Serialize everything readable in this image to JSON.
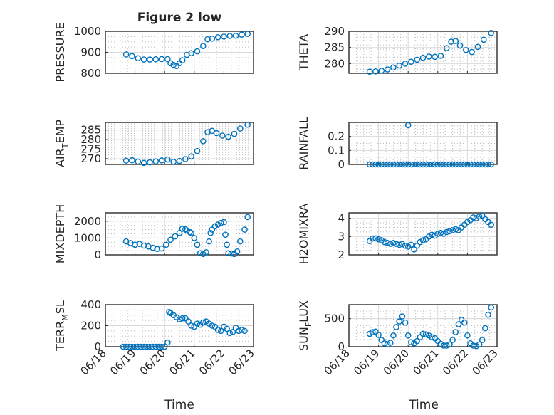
{
  "figure": {
    "title": "Figure 2 low",
    "xlabel": "Time",
    "xticks": [
      "06/18",
      "06/19",
      "06/20",
      "06/21",
      "06/22",
      "06/23"
    ],
    "series_color": "#0072BD"
  },
  "chart_data": [
    {
      "type": "scatter",
      "ylabel": "PRESSURE",
      "title": "Figure 2 low",
      "xlim": [
        0,
        5
      ],
      "ylim": [
        800,
        1000
      ],
      "yticks": [
        800,
        900,
        1000
      ],
      "xticks": [
        "06/18",
        "06/19",
        "06/20",
        "06/21",
        "06/22",
        "06/23"
      ],
      "show_xticklabels": false,
      "grid": true,
      "x": [
        0.7,
        0.9,
        1.1,
        1.3,
        1.5,
        1.7,
        1.9,
        2.1,
        2.2,
        2.3,
        2.4,
        2.5,
        2.6,
        2.75,
        2.9,
        3.1,
        3.3,
        3.45,
        3.6,
        3.8,
        4.0,
        4.2,
        4.4,
        4.6,
        4.8
      ],
      "y": [
        890,
        882,
        872,
        866,
        866,
        867,
        868,
        868,
        848,
        840,
        835,
        848,
        862,
        888,
        896,
        905,
        930,
        962,
        965,
        972,
        975,
        978,
        979,
        984,
        988
      ]
    },
    {
      "type": "scatter",
      "ylabel": "THETA",
      "xlim": [
        0,
        5
      ],
      "ylim": [
        277,
        290
      ],
      "yticks": [
        280,
        285,
        290
      ],
      "xticks": [
        "06/18",
        "06/19",
        "06/20",
        "06/21",
        "06/22",
        "06/23"
      ],
      "show_xticklabels": false,
      "grid": true,
      "x": [
        0.7,
        0.9,
        1.1,
        1.3,
        1.5,
        1.7,
        1.9,
        2.1,
        2.3,
        2.5,
        2.7,
        2.9,
        3.1,
        3.3,
        3.45,
        3.6,
        3.75,
        3.95,
        4.15,
        4.35,
        4.55,
        4.8
      ],
      "y": [
        277.5,
        277.6,
        277.8,
        278.2,
        278.8,
        279.4,
        280.0,
        280.6,
        281.2,
        281.8,
        282.2,
        282.1,
        282.4,
        284.8,
        286.8,
        287.0,
        285.6,
        284.2,
        283.6,
        285.2,
        287.4,
        289.5
      ]
    },
    {
      "type": "scatter",
      "ylabel": "AIR_TEMP",
      "xlim": [
        0,
        5
      ],
      "ylim": [
        267,
        289
      ],
      "yticks": [
        270,
        275,
        280,
        285
      ],
      "xticks": [
        "06/18",
        "06/19",
        "06/20",
        "06/21",
        "06/22",
        "06/23"
      ],
      "show_xticklabels": false,
      "grid": true,
      "x": [
        0.7,
        0.9,
        1.1,
        1.3,
        1.5,
        1.7,
        1.9,
        2.1,
        2.3,
        2.5,
        2.7,
        2.9,
        3.1,
        3.3,
        3.45,
        3.6,
        3.75,
        3.95,
        4.15,
        4.35,
        4.55,
        4.8
      ],
      "y": [
        269.0,
        269.2,
        268.5,
        267.8,
        268.1,
        268.6,
        269.1,
        269.6,
        268.4,
        268.8,
        269.8,
        271.2,
        274.0,
        279.2,
        283.9,
        284.6,
        283.4,
        282.1,
        281.5,
        283.0,
        285.8,
        287.8
      ]
    },
    {
      "type": "scatter",
      "ylabel": "RAINFALL",
      "xlim": [
        0,
        5
      ],
      "ylim": [
        0,
        0.3
      ],
      "yticks": [
        0,
        0.1,
        0.2
      ],
      "xticks": [
        "06/18",
        "06/19",
        "06/20",
        "06/21",
        "06/22",
        "06/23"
      ],
      "show_xticklabels": false,
      "grid": true,
      "x": [
        0.7,
        0.8,
        0.9,
        1.0,
        1.1,
        1.2,
        1.3,
        1.4,
        1.5,
        1.6,
        1.7,
        1.8,
        1.9,
        2.0,
        2.1,
        2.2,
        2.3,
        2.4,
        2.5,
        2.6,
        2.7,
        2.8,
        2.9,
        3.0,
        3.1,
        3.2,
        3.3,
        3.4,
        3.5,
        3.6,
        3.7,
        3.8,
        3.9,
        4.0,
        4.1,
        4.2,
        4.3,
        4.4,
        4.5,
        4.6,
        4.7,
        4.8,
        2.0
      ],
      "y": [
        0,
        0,
        0,
        0,
        0,
        0,
        0,
        0,
        0,
        0,
        0,
        0,
        0,
        0,
        0,
        0,
        0,
        0,
        0,
        0,
        0,
        0,
        0,
        0,
        0,
        0,
        0,
        0,
        0,
        0,
        0,
        0,
        0,
        0,
        0,
        0,
        0,
        0,
        0,
        0,
        0,
        0,
        0.28
      ]
    },
    {
      "type": "scatter",
      "ylabel": "MIXDEPTH",
      "xlim": [
        0,
        5
      ],
      "ylim": [
        0,
        2500
      ],
      "yticks": [
        0,
        1000,
        2000
      ],
      "xticks": [
        "06/18",
        "06/19",
        "06/20",
        "06/21",
        "06/22",
        "06/23"
      ],
      "show_xticklabels": false,
      "grid": true,
      "x": [
        0.7,
        0.85,
        1.0,
        1.15,
        1.3,
        1.45,
        1.6,
        1.75,
        1.9,
        2.05,
        2.2,
        2.35,
        2.5,
        2.6,
        2.7,
        2.75,
        2.85,
        2.9,
        3.0,
        3.1,
        3.2,
        3.3,
        3.4,
        3.5,
        3.55,
        3.6,
        3.7,
        3.8,
        3.9,
        4.0,
        4.05,
        4.1,
        4.15,
        4.25,
        4.35,
        4.45,
        4.55,
        4.7,
        4.8
      ],
      "y": [
        800,
        700,
        600,
        650,
        550,
        500,
        420,
        350,
        380,
        600,
        900,
        1100,
        1300,
        1550,
        1520,
        1450,
        1350,
        1300,
        1000,
        600,
        100,
        50,
        150,
        800,
        1300,
        1500,
        1700,
        1800,
        1900,
        1950,
        1200,
        600,
        100,
        80,
        50,
        200,
        800,
        1500,
        2250
      ]
    },
    {
      "type": "scatter",
      "ylabel": "H2OMIXRA",
      "xlim": [
        0,
        5
      ],
      "ylim": [
        2,
        4.3
      ],
      "yticks": [
        2,
        3,
        4
      ],
      "xticks": [
        "06/18",
        "06/19",
        "06/20",
        "06/21",
        "06/22",
        "06/23"
      ],
      "show_xticklabels": false,
      "grid": true,
      "x": [
        0.7,
        0.8,
        0.9,
        1.0,
        1.1,
        1.2,
        1.3,
        1.4,
        1.5,
        1.6,
        1.7,
        1.8,
        1.9,
        2.0,
        2.1,
        2.2,
        2.3,
        2.4,
        2.5,
        2.6,
        2.7,
        2.8,
        2.9,
        3.0,
        3.1,
        3.2,
        3.3,
        3.4,
        3.5,
        3.6,
        3.7,
        3.8,
        3.9,
        4.0,
        4.1,
        4.2,
        4.3,
        4.4,
        4.5,
        4.6,
        4.7,
        4.8
      ],
      "y": [
        2.75,
        2.9,
        2.9,
        2.85,
        2.8,
        2.7,
        2.65,
        2.6,
        2.65,
        2.6,
        2.55,
        2.6,
        2.5,
        2.45,
        2.55,
        2.3,
        2.5,
        2.7,
        2.8,
        2.85,
        3.0,
        3.1,
        3.05,
        3.15,
        3.2,
        3.15,
        3.25,
        3.3,
        3.35,
        3.4,
        3.35,
        3.5,
        3.65,
        3.8,
        3.9,
        4.05,
        4.0,
        4.1,
        4.15,
        3.95,
        3.8,
        3.65
      ]
    },
    {
      "type": "scatter",
      "ylabel": "TERR_MSL",
      "xlim": [
        0,
        5
      ],
      "ylim": [
        0,
        400
      ],
      "yticks": [
        0,
        200,
        400
      ],
      "xticks": [
        "06/18",
        "06/19",
        "06/20",
        "06/21",
        "06/22",
        "06/23"
      ],
      "show_xticklabels": true,
      "grid": true,
      "x": [
        0.6,
        0.7,
        0.8,
        0.9,
        1.0,
        1.1,
        1.2,
        1.3,
        1.4,
        1.5,
        1.6,
        1.7,
        1.8,
        1.9,
        2.0,
        2.1,
        2.15,
        2.2,
        2.3,
        2.4,
        2.5,
        2.6,
        2.7,
        2.8,
        2.9,
        3.0,
        3.1,
        3.2,
        3.3,
        3.4,
        3.5,
        3.6,
        3.7,
        3.8,
        3.9,
        4.0,
        4.1,
        4.2,
        4.3,
        4.4,
        4.5,
        4.6,
        4.7
      ],
      "y": [
        0,
        0,
        0,
        0,
        0,
        0,
        0,
        0,
        0,
        0,
        0,
        0,
        0,
        0,
        0,
        40,
        330,
        320,
        300,
        280,
        260,
        270,
        270,
        240,
        200,
        190,
        220,
        210,
        230,
        240,
        220,
        200,
        190,
        160,
        150,
        190,
        170,
        130,
        140,
        180,
        150,
        160,
        150
      ]
    },
    {
      "type": "scatter",
      "ylabel": "SUN_FLUX",
      "xlim": [
        0,
        5
      ],
      "ylim": [
        0,
        750
      ],
      "yticks": [
        0,
        500
      ],
      "xticks": [
        "06/18",
        "06/19",
        "06/20",
        "06/21",
        "06/22",
        "06/23"
      ],
      "show_xticklabels": true,
      "grid": true,
      "x": [
        0.7,
        0.8,
        0.9,
        1.0,
        1.1,
        1.2,
        1.3,
        1.4,
        1.5,
        1.6,
        1.7,
        1.8,
        1.9,
        2.0,
        2.1,
        2.2,
        2.3,
        2.4,
        2.5,
        2.6,
        2.7,
        2.8,
        2.9,
        3.0,
        3.1,
        3.2,
        3.3,
        3.4,
        3.5,
        3.6,
        3.7,
        3.8,
        3.9,
        4.0,
        4.1,
        4.2,
        4.3,
        4.4,
        4.5,
        4.6,
        4.7,
        4.8
      ],
      "y": [
        230,
        260,
        270,
        210,
        120,
        60,
        40,
        70,
        200,
        350,
        450,
        540,
        430,
        200,
        80,
        60,
        100,
        170,
        230,
        220,
        200,
        170,
        150,
        100,
        50,
        20,
        20,
        40,
        120,
        260,
        400,
        480,
        430,
        200,
        60,
        20,
        10,
        40,
        120,
        330,
        570,
        700
      ]
    }
  ]
}
